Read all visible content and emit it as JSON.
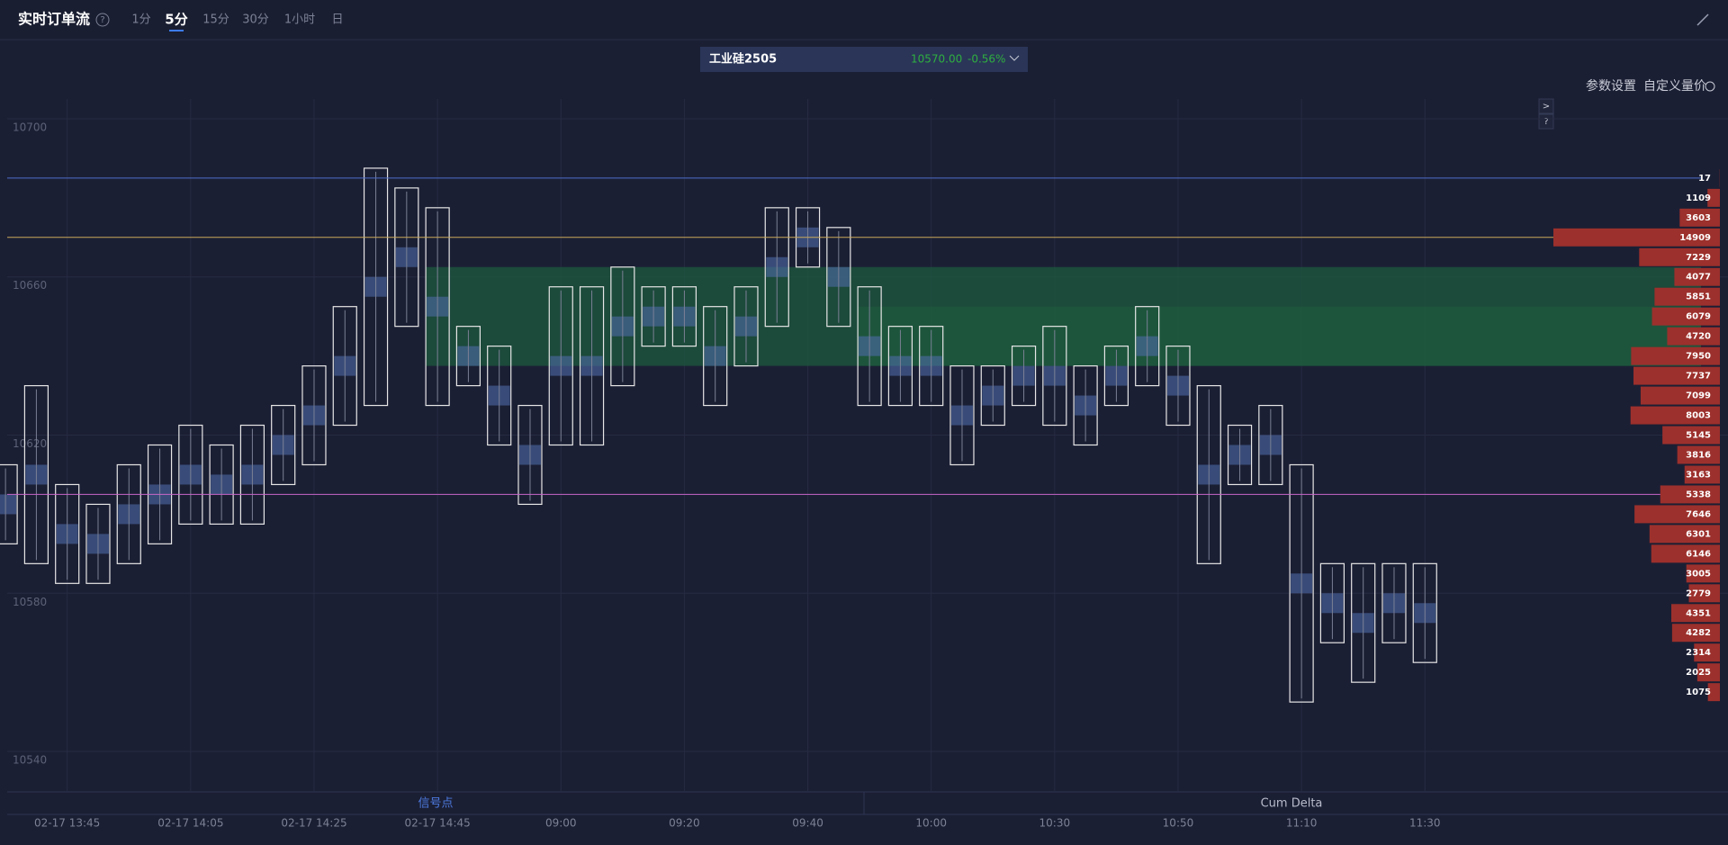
{
  "header": {
    "title": "实时订单流",
    "help": "?",
    "tabs": [
      "1分",
      "5分",
      "15分",
      "30分",
      "1小时",
      "日"
    ],
    "active_tab": 1
  },
  "symbol": {
    "name": "工业硅2505",
    "price": "10570.00",
    "change": "-0.56%"
  },
  "toolbar": [
    "参数设置",
    "自定义量价"
  ],
  "side_buttons": [
    ">",
    "?"
  ],
  "chart_data": {
    "type": "footprint",
    "categories": [
      null,
      null,
      "02-17 13:45",
      null,
      null,
      null,
      "02-17 14:05",
      null,
      null,
      null,
      "02-17 14:25",
      null,
      null,
      null,
      "02-17 14:45",
      null,
      null,
      null,
      "09:00",
      null,
      null,
      null,
      "09:20",
      null,
      null,
      null,
      "09:40",
      null,
      null,
      null,
      "10:00",
      null,
      null,
      null,
      "10:30",
      null,
      null,
      null,
      "10:50",
      null,
      null,
      null,
      "11:10",
      null,
      null,
      null,
      "11:30"
    ],
    "high": [
      10610,
      10630,
      10605,
      10600,
      10610,
      10615,
      10620,
      10615,
      10620,
      10625,
      10635,
      10650,
      10685,
      10680,
      10675,
      10645,
      10640,
      10625,
      10655,
      10655,
      10660,
      10655,
      10655,
      10650,
      10655,
      10675,
      10675,
      10670,
      10655,
      10645,
      10645,
      10635,
      10635,
      10640,
      10645,
      10635,
      10640,
      10650,
      10640,
      10630,
      10620,
      10625,
      10610,
      10585,
      10585,
      10585,
      10585
    ],
    "low": [
      10595,
      10590,
      10585,
      10585,
      10590,
      10595,
      10600,
      10600,
      10600,
      10610,
      10615,
      10625,
      10630,
      10650,
      10630,
      10635,
      10620,
      10605,
      10620,
      10620,
      10635,
      10645,
      10645,
      10630,
      10640,
      10650,
      10665,
      10650,
      10630,
      10630,
      10630,
      10615,
      10625,
      10630,
      10625,
      10620,
      10630,
      10635,
      10625,
      10590,
      10610,
      10610,
      10555,
      10570,
      10560,
      10570,
      10565
    ],
    "box_color": "#e6e6e6",
    "ylim": [
      10530,
      10705
    ],
    "yticks": [
      10540,
      10580,
      10620,
      10660,
      10700
    ],
    "grid": true,
    "lines": [
      {
        "value": 10685,
        "color": "#4d6ec9"
      },
      {
        "value": 10670,
        "color": "#c9a85a"
      },
      {
        "value": 10605,
        "color": "#c865c8"
      }
    ],
    "zones": [
      {
        "start": 14,
        "high": 10660,
        "low": 10640
      },
      {
        "start": 28,
        "high": 10650,
        "low": 10640
      }
    ],
    "zone_color": "#1d5a3e",
    "profile": {
      "prices": [
        10685,
        10680,
        10675,
        10670,
        10665,
        10660,
        10655,
        10650,
        10645,
        10640,
        10635,
        10630,
        10625,
        10620,
        10615,
        10610,
        10605,
        10600,
        10595,
        10590,
        10585,
        10580,
        10575,
        10570,
        10565,
        10560,
        10555
      ],
      "values": [
        17,
        1109,
        3603,
        14909,
        7229,
        4077,
        5851,
        6079,
        4720,
        7950,
        7737,
        7099,
        8003,
        5145,
        3816,
        3163,
        5338,
        7646,
        6301,
        6146,
        3005,
        2779,
        4351,
        4282,
        2314,
        2025,
        1075
      ],
      "color": "#9c302c"
    },
    "panels": [
      "信号点",
      "Cum Delta"
    ]
  }
}
